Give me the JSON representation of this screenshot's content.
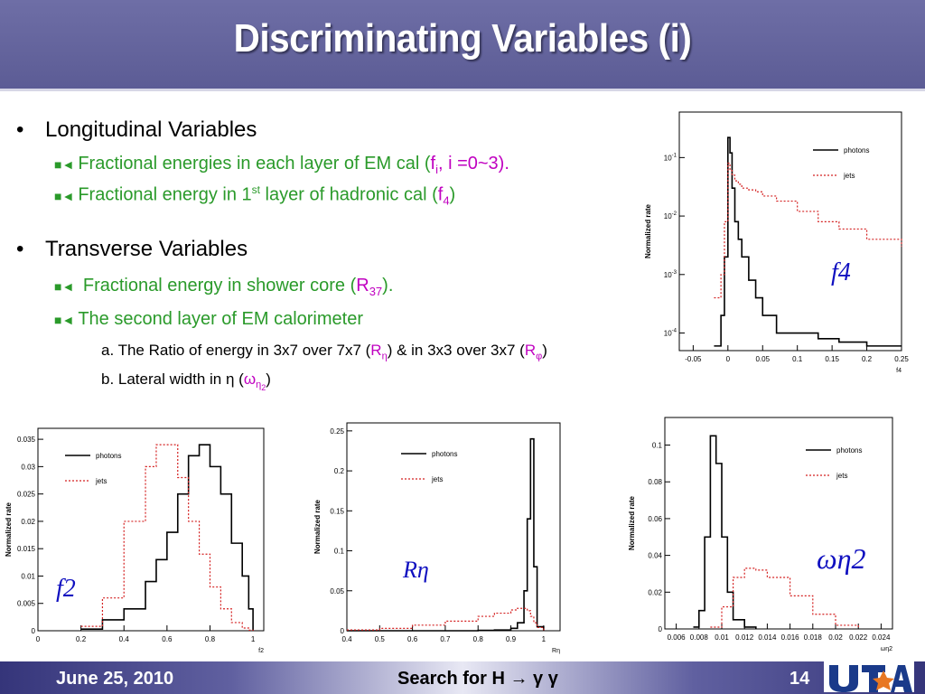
{
  "slide": {
    "title": "Discriminating Variables (i)",
    "bullets": [
      {
        "text": "Longitudinal Variables",
        "sub": [
          {
            "pre": "Fractional energies in each layer of EM cal (",
            "var": "f",
            "var_sub": "i",
            "post": ", i =0~3)."
          },
          {
            "pre": "Fractional energy in 1",
            "sup": "st",
            "mid": "  layer of hadronic cal (",
            "var": "f",
            "var_sub": "4",
            "post": ")"
          }
        ]
      },
      {
        "text": "Transverse Variables",
        "sub": [
          {
            "pre": " Fractional energy in shower core (",
            "var": "R",
            "var_sub": "37",
            "post": ")."
          },
          {
            "pre": "The second layer of EM calorimeter"
          }
        ],
        "subsub": [
          {
            "pre": "a. The Ratio of energy in 3x7 over 7x7 (",
            "v1": "R",
            "v1sub": "η",
            "mid": ") & in 3x3 over 3x7 (",
            "v2": "R",
            "v2sub": "φ",
            "post": ")"
          },
          {
            "pre": "b.  Lateral width in η (",
            "v": "ω",
            "vsub": "η",
            "vsubsub": "2",
            "post": ")"
          }
        ]
      }
    ]
  },
  "footer": {
    "date": "June 25, 2010",
    "title": "Search for H → γ γ",
    "page": "14"
  },
  "colors": {
    "photons": "#000000",
    "jets": "#d42020",
    "label": "#1010c0",
    "bullet_sub": "#2a9a2a",
    "highlight": "#c000c0"
  },
  "chart_data": [
    {
      "type": "line",
      "name": "f4",
      "annotation": "f4",
      "ylabel": "Normalized rate",
      "xlabel": "f4",
      "log_y": true,
      "xlim": [
        -0.07,
        0.25
      ],
      "ylim": [
        5e-05,
        0.6
      ],
      "x_ticks": [
        "-0.05",
        "0",
        "0.05",
        "0.1",
        "0.15",
        "0.2",
        "0.25"
      ],
      "y_ticks": [
        "10^-4",
        "10^-3",
        "10^-2",
        "10^-1"
      ],
      "legend": [
        "photons",
        "jets"
      ],
      "x": [
        -0.02,
        -0.01,
        -0.005,
        0,
        0.003,
        0.006,
        0.01,
        0.015,
        0.02,
        0.03,
        0.04,
        0.05,
        0.07,
        0.1,
        0.13,
        0.16,
        0.2,
        0.25
      ],
      "series": [
        {
          "name": "photons",
          "values": [
            6e-05,
            0.0002,
            0.002,
            0.22,
            0.12,
            0.03,
            0.008,
            0.004,
            0.002,
            0.0008,
            0.0004,
            0.0002,
            0.0001,
            0.0001,
            8e-05,
            7e-05,
            6e-05,
            6e-05
          ]
        },
        {
          "name": "jets",
          "values": [
            0.0004,
            0.001,
            0.008,
            0.08,
            0.06,
            0.05,
            0.04,
            0.035,
            0.03,
            0.028,
            0.026,
            0.022,
            0.018,
            0.012,
            0.008,
            0.006,
            0.004,
            0.003
          ]
        }
      ]
    },
    {
      "type": "line",
      "name": "f2",
      "annotation": "f2",
      "ylabel": "Normalized rate",
      "xlabel": "f2",
      "xlim": [
        0,
        1.05
      ],
      "ylim": [
        0,
        0.037
      ],
      "x_ticks": [
        "0",
        "0.2",
        "0.4",
        "0.6",
        "0.8",
        "1"
      ],
      "y_ticks": [
        "0",
        "0.005",
        "0.01",
        "0.015",
        "0.02",
        "0.025",
        "0.03",
        "0.035"
      ],
      "legend": [
        "photons",
        "jets"
      ],
      "x": [
        0.2,
        0.3,
        0.4,
        0.5,
        0.55,
        0.6,
        0.65,
        0.7,
        0.75,
        0.8,
        0.85,
        0.9,
        0.95,
        0.98,
        1.0
      ],
      "series": [
        {
          "name": "photons",
          "values": [
            0.0003,
            0.002,
            0.004,
            0.009,
            0.013,
            0.018,
            0.025,
            0.032,
            0.034,
            0.03,
            0.025,
            0.016,
            0.01,
            0.004,
            0
          ]
        },
        {
          "name": "jets",
          "values": [
            0.0008,
            0.006,
            0.02,
            0.03,
            0.034,
            0.034,
            0.028,
            0.02,
            0.014,
            0.008,
            0.004,
            0.0015,
            0.0005,
            0.0001,
            0
          ]
        }
      ]
    },
    {
      "type": "line",
      "name": "Reta",
      "annotation": "Rη",
      "ylabel": "Normalized rate",
      "xlabel": "Rη",
      "xlim": [
        0.4,
        1.05
      ],
      "ylim": [
        0,
        0.26
      ],
      "x_ticks": [
        "0.4",
        "0.5",
        "0.6",
        "0.7",
        "0.8",
        "0.9",
        "1"
      ],
      "y_ticks": [
        "0",
        "0.05",
        "0.1",
        "0.15",
        "0.2",
        "0.25"
      ],
      "legend": [
        "photons",
        "jets"
      ],
      "x": [
        0.4,
        0.5,
        0.6,
        0.7,
        0.8,
        0.85,
        0.9,
        0.92,
        0.94,
        0.95,
        0.96,
        0.97,
        0.98,
        1.0
      ],
      "series": [
        {
          "name": "photons",
          "values": [
            0,
            0,
            0,
            0,
            0.0005,
            0.001,
            0.003,
            0.01,
            0.05,
            0.14,
            0.24,
            0.08,
            0.005,
            0
          ]
        },
        {
          "name": "jets",
          "values": [
            0.001,
            0.003,
            0.007,
            0.012,
            0.018,
            0.022,
            0.026,
            0.028,
            0.028,
            0.025,
            0.018,
            0.01,
            0.004,
            0.0005
          ]
        }
      ]
    },
    {
      "type": "line",
      "name": "weta2",
      "annotation": "ωη2",
      "ylabel": "Normalized rate",
      "xlabel": "ωη2",
      "xlim": [
        0.005,
        0.025
      ],
      "ylim": [
        0,
        0.115
      ],
      "x_ticks": [
        "0.006",
        "0.008",
        "0.01",
        "0.012",
        "0.014",
        "0.016",
        "0.018",
        "0.02",
        "0.022",
        "0.024"
      ],
      "y_ticks": [
        "0",
        "0.02",
        "0.04",
        "0.06",
        "0.08",
        "0.1"
      ],
      "legend": [
        "photons",
        "jets"
      ],
      "x": [
        0.0075,
        0.008,
        0.0085,
        0.009,
        0.0095,
        0.01,
        0.0105,
        0.011,
        0.012,
        0.013
      ],
      "series": [
        {
          "name": "photons",
          "values": [
            0.001,
            0.01,
            0.05,
            0.105,
            0.09,
            0.05,
            0.02,
            0.005,
            0.001,
            0
          ]
        }
      ],
      "series_jets_x": [
        0.009,
        0.01,
        0.011,
        0.012,
        0.013,
        0.014,
        0.016,
        0.018,
        0.02,
        0.022
      ],
      "series_jets": {
        "name": "jets",
        "values": [
          0.001,
          0.012,
          0.028,
          0.033,
          0.032,
          0.028,
          0.018,
          0.008,
          0.002,
          0.0005
        ]
      }
    }
  ]
}
